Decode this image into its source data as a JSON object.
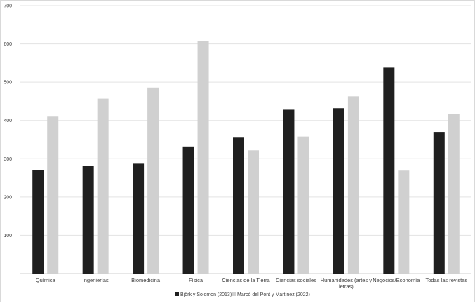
{
  "chart_data": {
    "type": "bar",
    "title": "",
    "xlabel": "",
    "ylabel": "",
    "ylim": [
      0,
      700
    ],
    "yticks": [
      0,
      100,
      200,
      300,
      400,
      500,
      600,
      700
    ],
    "ytick_labels": [
      "-",
      "100",
      "200",
      "300",
      "400",
      "500",
      "600",
      "700"
    ],
    "grid": true,
    "legend_position": "bottom",
    "categories": [
      [
        "Química"
      ],
      [
        "Ingenierías"
      ],
      [
        "Biomedicina"
      ],
      [
        "Física"
      ],
      [
        "Ciencias de la Tierra"
      ],
      [
        "Ciencias sociales"
      ],
      [
        "Humanidades (artes y",
        "letras)"
      ],
      [
        "Negocios/Economía"
      ],
      [
        "Todas las revistas"
      ]
    ],
    "series": [
      {
        "name": "Björk y Solomon (2013)",
        "color": "#1f1f1f",
        "values": [
          270,
          282,
          287,
          332,
          355,
          428,
          432,
          538,
          370
        ]
      },
      {
        "name": "Marcó del Pont y Martínez (2022)",
        "color": "#d0d0d0",
        "values": [
          410,
          457,
          486,
          608,
          322,
          358,
          463,
          269,
          416
        ]
      }
    ]
  }
}
